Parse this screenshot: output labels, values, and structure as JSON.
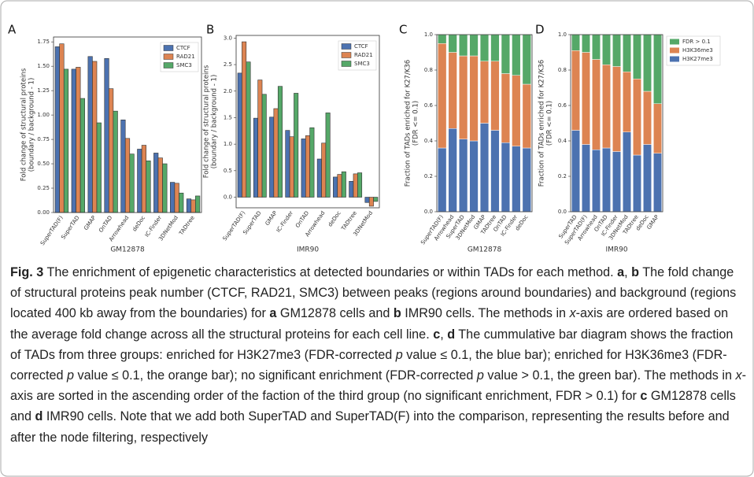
{
  "chart_data": [
    {
      "type": "bar",
      "panel_label": "A",
      "xlabel": "GM12878",
      "ylabel": [
        "Fold change of structural proteins",
        "(boundary / background - 1)"
      ],
      "categories": [
        "SuperTAD(F)",
        "SuperTAD",
        "GMAP",
        "OnTAD",
        "Arrowhead",
        "deDoc",
        "IC-Finder",
        "3DNetMod",
        "TADtree"
      ],
      "series": [
        {
          "name": "CTCF",
          "color": "#4c72b0",
          "values": [
            1.7,
            1.47,
            1.6,
            1.58,
            0.95,
            0.65,
            0.61,
            0.31,
            0.14
          ]
        },
        {
          "name": "RAD21",
          "color": "#dd8452",
          "values": [
            1.73,
            1.49,
            1.55,
            1.27,
            0.76,
            0.69,
            0.56,
            0.3,
            0.13
          ]
        },
        {
          "name": "SMC3",
          "color": "#55a868",
          "values": [
            1.47,
            1.17,
            0.92,
            1.04,
            0.6,
            0.53,
            0.5,
            0.2,
            0.17
          ]
        }
      ],
      "ylim": [
        0,
        1.8
      ],
      "yticks": [
        {
          "value": 0,
          "label": "0.00"
        },
        {
          "value": 0.25,
          "label": "0.25"
        },
        {
          "value": 0.5,
          "label": "0.50"
        },
        {
          "value": 0.75,
          "label": "0.75"
        },
        {
          "value": 1,
          "label": "1.00"
        },
        {
          "value": 1.25,
          "label": "1.25"
        },
        {
          "value": 1.5,
          "label": "1.50"
        },
        {
          "value": 1.75,
          "label": "1.75"
        }
      ],
      "legend": "upper right"
    },
    {
      "type": "bar",
      "panel_label": "B",
      "xlabel": "IMR90",
      "ylabel": [
        "Fold change of structural proteins",
        "(boundary / background - 1)"
      ],
      "categories": [
        "SuperTAD(F)",
        "SuperTAD",
        "GMAP",
        "IC-Finder",
        "OnTAD",
        "Arrowhead",
        "deDoc",
        "TADtree",
        "3DNetMod"
      ],
      "series": [
        {
          "name": "CTCF",
          "color": "#4c72b0",
          "values": [
            2.34,
            1.49,
            1.51,
            1.26,
            1.1,
            0.72,
            0.38,
            0.3,
            -0.1
          ]
        },
        {
          "name": "RAD21",
          "color": "#dd8452",
          "values": [
            2.93,
            2.21,
            1.67,
            1.14,
            1.16,
            1.02,
            0.43,
            0.44,
            -0.17
          ]
        },
        {
          "name": "SMC3",
          "color": "#55a868",
          "values": [
            2.55,
            1.94,
            2.09,
            1.96,
            1.31,
            1.59,
            0.48,
            0.46,
            -0.08
          ]
        }
      ],
      "ylim": [
        -0.2,
        3.05
      ],
      "yticks": [
        {
          "value": 0,
          "label": "0.0"
        },
        {
          "value": 0.5,
          "label": "0.5"
        },
        {
          "value": 1,
          "label": "1.0"
        },
        {
          "value": 1.5,
          "label": "1.5"
        },
        {
          "value": 2,
          "label": "2.0"
        },
        {
          "value": 2.5,
          "label": "2.5"
        },
        {
          "value": 3,
          "label": "3.0"
        }
      ],
      "legend": "upper right"
    },
    {
      "type": "stacked_bar",
      "panel_label": "C",
      "xlabel": "GM12878",
      "ylabel": [
        "Fraction of TADs enriched for K27/K36",
        "(FDR <= 0.1)"
      ],
      "categories": [
        "SuperTAD(F)",
        "Arrowhead",
        "SuperTAD",
        "3DNetMod",
        "GMAP",
        "TADtree",
        "OnTAD",
        "IC-Finder",
        "deDoc"
      ],
      "series": [
        {
          "name": "H3K27me3",
          "color": "#4c72b0",
          "values": [
            0.36,
            0.47,
            0.41,
            0.4,
            0.5,
            0.46,
            0.39,
            0.37,
            0.36
          ]
        },
        {
          "name": "H3K36me3",
          "color": "#dd8452",
          "values": [
            0.59,
            0.43,
            0.47,
            0.48,
            0.35,
            0.39,
            0.39,
            0.4,
            0.36
          ]
        },
        {
          "name": "FDR > 0.1",
          "color": "#55a868",
          "values": [
            0.05,
            0.1,
            0.12,
            0.12,
            0.15,
            0.15,
            0.22,
            0.23,
            0.28
          ]
        }
      ],
      "ylim": [
        0,
        1
      ],
      "yticks": [
        {
          "value": 0,
          "label": "0.0"
        },
        {
          "value": 0.2,
          "label": "0.2"
        },
        {
          "value": 0.4,
          "label": "0.4"
        },
        {
          "value": 0.6,
          "label": "0.6"
        },
        {
          "value": 0.8,
          "label": "0.8"
        },
        {
          "value": 1,
          "label": "1.0"
        }
      ],
      "legend": false
    },
    {
      "type": "stacked_bar",
      "panel_label": "D",
      "xlabel": "IMR90",
      "ylabel": [
        "Fraction of TADs enriched for K27/K36",
        "(FDR <= 0.1)"
      ],
      "categories": [
        "SuperTAD",
        "SuperTAD(F)",
        "Arrowhead",
        "OnTAD",
        "IC-Finder",
        "3DNetMod",
        "TADtree",
        "deDoc",
        "GMAP"
      ],
      "series": [
        {
          "name": "H3K27me3",
          "color": "#4c72b0",
          "values": [
            0.46,
            0.38,
            0.35,
            0.36,
            0.34,
            0.45,
            0.32,
            0.38,
            0.33
          ]
        },
        {
          "name": "H3K36me3",
          "color": "#dd8452",
          "values": [
            0.45,
            0.52,
            0.51,
            0.47,
            0.48,
            0.34,
            0.43,
            0.3,
            0.28
          ]
        },
        {
          "name": "FDR > 0.1",
          "color": "#55a868",
          "values": [
            0.09,
            0.1,
            0.14,
            0.17,
            0.18,
            0.21,
            0.25,
            0.32,
            0.39
          ]
        }
      ],
      "ylim": [
        0,
        1
      ],
      "yticks": [
        {
          "value": 0,
          "label": "0.0"
        },
        {
          "value": 0.2,
          "label": "0.2"
        },
        {
          "value": 0.4,
          "label": "0.4"
        },
        {
          "value": 0.6,
          "label": "0.6"
        },
        {
          "value": 0.8,
          "label": "0.8"
        },
        {
          "value": 1,
          "label": "1.0"
        }
      ],
      "legend": "outside right",
      "legend_reversed": true
    }
  ],
  "caption": [
    {
      "text": "Fig. 3",
      "bold": true
    },
    {
      "text": "  The enrichment of epigenetic characteristics at detected boundaries or within TADs for each method. "
    },
    {
      "text": "a",
      "bold": true
    },
    {
      "text": ", "
    },
    {
      "text": "b",
      "bold": true
    },
    {
      "text": " The fold change of structural proteins peak number (CTCF, RAD21, SMC3) between peaks (regions around boundaries) and background (regions located 400 kb away from the boundaries) for "
    },
    {
      "text": "a",
      "bold": true
    },
    {
      "text": " GM12878 cells and "
    },
    {
      "text": "b",
      "bold": true
    },
    {
      "text": " IMR90 cells. The methods in "
    },
    {
      "text": "x",
      "italic": true
    },
    {
      "text": "-axis are ordered based on the average fold change across all the structural proteins for each cell line. "
    },
    {
      "text": "c",
      "bold": true
    },
    {
      "text": ", "
    },
    {
      "text": "d",
      "bold": true
    },
    {
      "text": " The cummulative bar diagram shows the fraction of TADs from three groups: enriched for H3K27me3 (FDR-corrected "
    },
    {
      "text": "p",
      "italic": true
    },
    {
      "text": " value ≤ 0.1, the blue bar); enriched for H3K36me3 (FDR-corrected "
    },
    {
      "text": "p",
      "italic": true
    },
    {
      "text": " value ≤ 0.1, the orange bar); no significant enrichment (FDR-corrected "
    },
    {
      "text": "p",
      "italic": true
    },
    {
      "text": " value > 0.1, the green bar). The methods in "
    },
    {
      "text": "x",
      "italic": true
    },
    {
      "text": "-axis are sorted in the ascending order of the faction of the third group (no significant enrichment, FDR > 0.1) for "
    },
    {
      "text": "c",
      "bold": true
    },
    {
      "text": " GM12878 cells and "
    },
    {
      "text": "d",
      "bold": true
    },
    {
      "text": " IMR90 cells. Note that we add both SuperTAD and SuperTAD(F) into the comparison, representing the results before and after the node filtering, respectively"
    }
  ]
}
